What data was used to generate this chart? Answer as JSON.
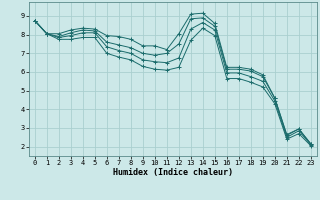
{
  "xlabel": "Humidex (Indice chaleur)",
  "bg_color": "#cce8e8",
  "grid_color": "#aacfcf",
  "line_color": "#1a6b6b",
  "xlim": [
    -0.5,
    23.5
  ],
  "ylim": [
    1.5,
    9.75
  ],
  "xticks": [
    0,
    1,
    2,
    3,
    4,
    5,
    6,
    7,
    8,
    9,
    10,
    11,
    12,
    13,
    14,
    15,
    16,
    17,
    18,
    19,
    20,
    21,
    22,
    23
  ],
  "yticks": [
    2,
    3,
    4,
    5,
    6,
    7,
    8,
    9
  ],
  "lines": [
    {
      "x": [
        0,
        1,
        2,
        3,
        4,
        5,
        6,
        7,
        8,
        9,
        10,
        11,
        12,
        13,
        14,
        15,
        16,
        17,
        18,
        19,
        20,
        21,
        22,
        23
      ],
      "y": [
        8.75,
        8.05,
        8.05,
        8.25,
        8.35,
        8.3,
        7.95,
        7.9,
        7.75,
        7.4,
        7.4,
        7.2,
        8.05,
        9.1,
        9.15,
        8.6,
        6.25,
        6.25,
        6.15,
        5.85,
        4.6,
        2.65,
        2.95,
        2.15
      ]
    },
    {
      "x": [
        0,
        1,
        2,
        3,
        4,
        5,
        6,
        7,
        8,
        9,
        10,
        11,
        12,
        13,
        14,
        15,
        16,
        17,
        18,
        19,
        20,
        21,
        22,
        23
      ],
      "y": [
        8.75,
        8.05,
        7.9,
        8.1,
        8.25,
        8.2,
        7.6,
        7.45,
        7.3,
        7.0,
        6.9,
        7.0,
        7.5,
        8.85,
        8.9,
        8.45,
        6.15,
        6.15,
        6.05,
        5.75,
        4.6,
        2.6,
        2.95,
        2.15
      ]
    },
    {
      "x": [
        0,
        1,
        2,
        3,
        4,
        5,
        6,
        7,
        8,
        9,
        10,
        11,
        12,
        13,
        14,
        15,
        16,
        17,
        18,
        19,
        20,
        21,
        22,
        23
      ],
      "y": [
        8.75,
        8.05,
        7.85,
        7.95,
        8.1,
        8.1,
        7.35,
        7.15,
        7.0,
        6.65,
        6.55,
        6.5,
        6.75,
        8.3,
        8.65,
        8.25,
        5.95,
        5.95,
        5.75,
        5.5,
        4.45,
        2.5,
        2.85,
        2.1
      ]
    },
    {
      "x": [
        0,
        1,
        2,
        3,
        4,
        5,
        6,
        7,
        8,
        9,
        10,
        11,
        12,
        13,
        14,
        15,
        16,
        17,
        18,
        19,
        20,
        21,
        22,
        23
      ],
      "y": [
        8.75,
        8.05,
        7.75,
        7.75,
        7.85,
        7.85,
        7.0,
        6.8,
        6.65,
        6.3,
        6.15,
        6.1,
        6.25,
        7.7,
        8.35,
        7.95,
        5.65,
        5.65,
        5.45,
        5.2,
        4.3,
        2.4,
        2.7,
        2.05
      ]
    }
  ]
}
